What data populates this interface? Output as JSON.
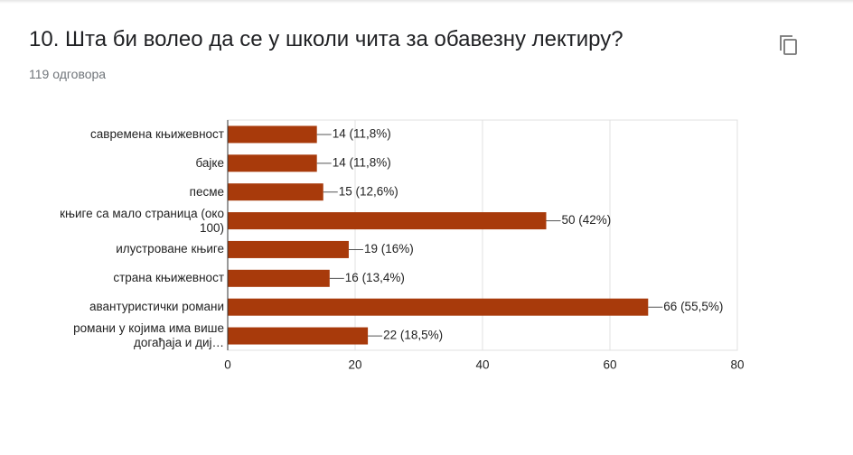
{
  "chart_data": {
    "type": "bar",
    "orientation": "horizontal",
    "title": "10. Шта би волео да се у школи чита за обавезну лектиру?",
    "subtitle": "119 одговора",
    "categories": [
      "савремена књижевност",
      "бајке",
      "песме",
      "књиге са мало страница (око 100)",
      "илустроване књиге",
      "страна књижевност",
      "авантуристички романи",
      "романи у којима има више догађаја и диј…"
    ],
    "values": [
      14,
      14,
      15,
      50,
      19,
      16,
      66,
      22
    ],
    "value_labels": [
      "14 (11,8%)",
      "14 (11,8%)",
      "15 (12,6%)",
      "50 (42%)",
      "19 (16%)",
      "16 (13,4%)",
      "66 (55,5%)",
      "22 (18,5%)"
    ],
    "color": "#a83a0b",
    "xlim": [
      0,
      80
    ],
    "xticks": [
      0,
      20,
      40,
      60,
      80
    ],
    "grid": true
  }
}
